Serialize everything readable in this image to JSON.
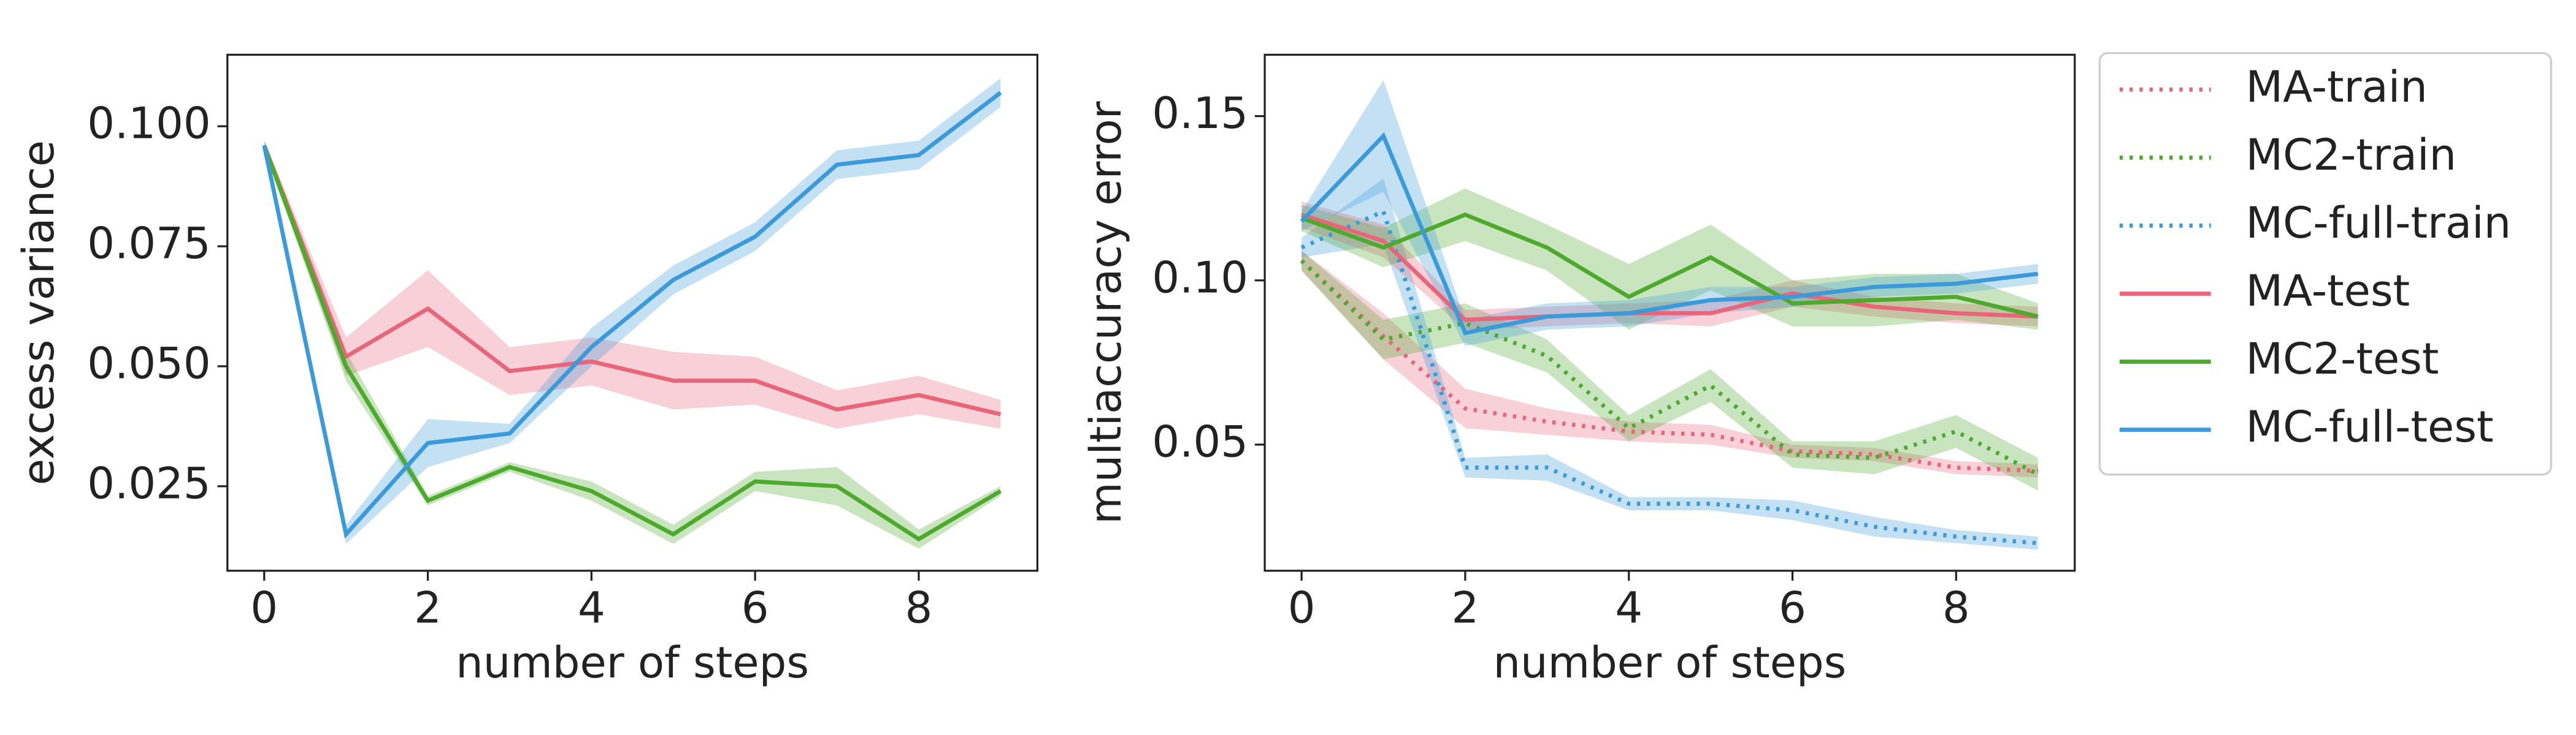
{
  "chart_data": [
    {
      "type": "line",
      "xlabel": "number of steps",
      "ylabel": "excess variance",
      "x": [
        0,
        1,
        2,
        3,
        4,
        5,
        6,
        7,
        8,
        9
      ],
      "xlim": [
        -0.45,
        9.45
      ],
      "xticks": [
        0,
        2,
        4,
        6,
        8
      ],
      "ylim": [
        0.0074,
        0.1149
      ],
      "yticks": [
        0.025,
        {
          "value": 0.05,
          "label": "0.050"
        },
        0.075,
        {
          "value": 0.1,
          "label": "0.100"
        }
      ],
      "series": [
        {
          "name": "MA-test",
          "color": "#e8657a",
          "style": "solid",
          "values": [
            0.096,
            0.052,
            0.062,
            0.049,
            0.051,
            0.047,
            0.047,
            0.041,
            0.044,
            0.04
          ],
          "ci": [
            0.001,
            0.004,
            0.008,
            0.005,
            0.005,
            0.006,
            0.005,
            0.004,
            0.004,
            0.003
          ]
        },
        {
          "name": "MC2-test",
          "color": "#4daa2d",
          "style": "solid",
          "values": [
            0.096,
            0.05,
            0.022,
            0.029,
            0.024,
            0.015,
            0.026,
            0.025,
            0.014,
            0.024
          ],
          "ci": [
            0.001,
            0.003,
            0.001,
            0.001,
            0.002,
            0.002,
            0.002,
            0.004,
            0.002,
            0.001
          ]
        },
        {
          "name": "MC-full-test",
          "color": "#3b9ad9",
          "style": "solid",
          "values": [
            0.096,
            0.015,
            0.034,
            0.036,
            0.054,
            0.068,
            0.077,
            0.092,
            0.094,
            0.107
          ],
          "ci": [
            0.001,
            0.002,
            0.005,
            0.002,
            0.004,
            0.003,
            0.003,
            0.003,
            0.003,
            0.003
          ]
        }
      ]
    },
    {
      "type": "line",
      "xlabel": "number of steps",
      "ylabel": "multiaccuracy error",
      "x": [
        0,
        1,
        2,
        3,
        4,
        5,
        6,
        7,
        8,
        9
      ],
      "xlim": [
        -0.45,
        9.45
      ],
      "xticks": [
        0,
        2,
        4,
        6,
        8
      ],
      "ylim": [
        0.0116,
        0.1687
      ],
      "yticks": [
        0.05,
        {
          "value": 0.1,
          "label": "0.10"
        },
        0.15
      ],
      "legend": "outside upper right",
      "series": [
        {
          "name": "MA-train",
          "color": "#e8657a",
          "style": "dotted",
          "values": [
            0.106,
            0.083,
            0.061,
            0.057,
            0.054,
            0.053,
            0.048,
            0.047,
            0.043,
            0.042
          ],
          "ci": [
            0.003,
            0.007,
            0.006,
            0.004,
            0.003,
            0.003,
            0.002,
            0.002,
            0.002,
            0.002
          ]
        },
        {
          "name": "MC2-train",
          "color": "#4daa2d",
          "style": "dotted",
          "values": [
            0.106,
            0.082,
            0.087,
            0.077,
            0.055,
            0.068,
            0.047,
            0.046,
            0.054,
            0.041
          ],
          "ci": [
            0.003,
            0.006,
            0.006,
            0.005,
            0.004,
            0.005,
            0.004,
            0.005,
            0.005,
            0.005
          ]
        },
        {
          "name": "MC-full-train",
          "color": "#3b9ad9",
          "style": "dotted",
          "values": [
            0.11,
            0.121,
            0.043,
            0.043,
            0.032,
            0.032,
            0.03,
            0.025,
            0.022,
            0.02
          ],
          "ci": [
            0.003,
            0.01,
            0.003,
            0.004,
            0.002,
            0.002,
            0.003,
            0.003,
            0.002,
            0.002
          ]
        },
        {
          "name": "MA-test",
          "color": "#e8657a",
          "style": "solid",
          "values": [
            0.12,
            0.112,
            0.088,
            0.089,
            0.09,
            0.09,
            0.096,
            0.092,
            0.09,
            0.089
          ],
          "ci": [
            0.004,
            0.005,
            0.003,
            0.003,
            0.003,
            0.004,
            0.004,
            0.003,
            0.003,
            0.003
          ]
        },
        {
          "name": "MC2-test",
          "color": "#4daa2d",
          "style": "solid",
          "values": [
            0.119,
            0.11,
            0.12,
            0.11,
            0.095,
            0.107,
            0.093,
            0.094,
            0.095,
            0.089
          ],
          "ci": [
            0.004,
            0.006,
            0.008,
            0.007,
            0.01,
            0.01,
            0.007,
            0.008,
            0.007,
            0.004
          ]
        },
        {
          "name": "MC-full-test",
          "color": "#3b9ad9",
          "style": "solid",
          "values": [
            0.118,
            0.144,
            0.084,
            0.089,
            0.09,
            0.094,
            0.095,
            0.098,
            0.099,
            0.102
          ],
          "ci": [
            0.003,
            0.017,
            0.004,
            0.004,
            0.004,
            0.004,
            0.003,
            0.003,
            0.003,
            0.003
          ]
        }
      ]
    }
  ]
}
